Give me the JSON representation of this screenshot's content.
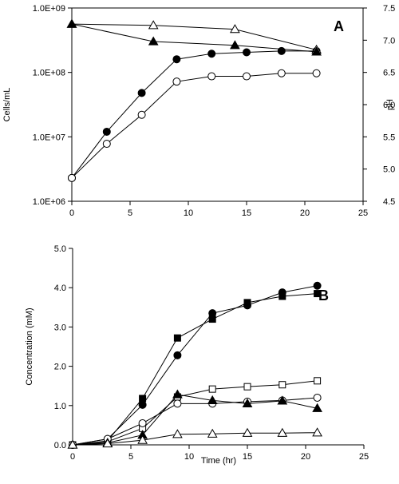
{
  "chart_data": [
    {
      "type": "scatter",
      "panel_label": "A",
      "xlabel": "",
      "ylabel": "Cells/mL",
      "y2label": "pH",
      "xlim": [
        0,
        25
      ],
      "ylim": [
        1000000,
        1000000000
      ],
      "yscale": "log",
      "y2lim": [
        4.5,
        7.5
      ],
      "x_ticks": [
        "0",
        "5",
        "10",
        "15",
        "20",
        "25"
      ],
      "y_ticks": [
        "1.0E+06",
        "1.0E+07",
        "1.0E+08",
        "1.0E+09"
      ],
      "y2_ticks": [
        "4.5",
        "5.0",
        "5.5",
        "6.0",
        "6.5",
        "7.0",
        "7.5"
      ],
      "grid": false,
      "series": [
        {
          "marker": "circle-filled",
          "axis": "left",
          "x": [
            0,
            3,
            6,
            9,
            12,
            15,
            18,
            21
          ],
          "y": [
            2300000,
            12000000,
            48000000,
            160000000,
            195000000,
            205000000,
            215000000,
            215000000
          ]
        },
        {
          "marker": "circle-open",
          "axis": "left",
          "x": [
            0,
            3,
            6,
            9,
            12,
            15,
            18,
            21
          ],
          "y": [
            2300000,
            7800000,
            22000000,
            72000000,
            87000000,
            87000000,
            97000000,
            97000000
          ]
        },
        {
          "marker": "triangle-open",
          "axis": "right",
          "x": [
            0,
            7,
            14,
            21
          ],
          "y": [
            7.25,
            7.23,
            7.17,
            6.85
          ]
        },
        {
          "marker": "triangle-filled",
          "axis": "right",
          "x": [
            0,
            7,
            14,
            21
          ],
          "y": [
            7.25,
            6.98,
            6.92,
            6.82
          ]
        }
      ]
    },
    {
      "type": "scatter",
      "panel_label": "B",
      "xlabel": "Time (hr)",
      "ylabel": "Concentration (mM)",
      "xlim": [
        0,
        25
      ],
      "ylim": [
        0,
        5
      ],
      "x_ticks": [
        "0",
        "5",
        "10",
        "15",
        "20",
        "25"
      ],
      "y_ticks": [
        "0.0",
        "1.0",
        "2.0",
        "3.0",
        "4.0",
        "5.0"
      ],
      "grid": false,
      "series": [
        {
          "marker": "circle-filled",
          "x": [
            0,
            3,
            6,
            9,
            12,
            15,
            18,
            21
          ],
          "y": [
            0.0,
            0.15,
            1.02,
            2.28,
            3.35,
            3.55,
            3.88,
            4.05
          ]
        },
        {
          "marker": "square-filled",
          "x": [
            0,
            3,
            6,
            9,
            12,
            15,
            18,
            21
          ],
          "y": [
            0.0,
            0.1,
            1.18,
            2.72,
            3.2,
            3.62,
            3.78,
            3.85
          ]
        },
        {
          "marker": "square-open",
          "x": [
            0,
            3,
            6,
            9,
            12,
            15,
            18,
            21
          ],
          "y": [
            0.0,
            0.08,
            0.42,
            1.22,
            1.42,
            1.48,
            1.53,
            1.63
          ]
        },
        {
          "marker": "circle-open",
          "x": [
            0,
            3,
            6,
            9,
            12,
            15,
            18,
            21
          ],
          "y": [
            0.0,
            0.15,
            0.55,
            1.05,
            1.05,
            1.1,
            1.13,
            1.2
          ]
        },
        {
          "marker": "triangle-filled",
          "x": [
            0,
            3,
            6,
            9,
            12,
            15,
            18,
            21
          ],
          "y": [
            0.0,
            0.05,
            0.25,
            1.28,
            1.13,
            1.05,
            1.12,
            0.93
          ]
        },
        {
          "marker": "triangle-open",
          "x": [
            0,
            3,
            6,
            9,
            12,
            15,
            18,
            21
          ],
          "y": [
            0.0,
            0.03,
            0.12,
            0.27,
            0.28,
            0.3,
            0.3,
            0.31
          ]
        }
      ]
    }
  ]
}
